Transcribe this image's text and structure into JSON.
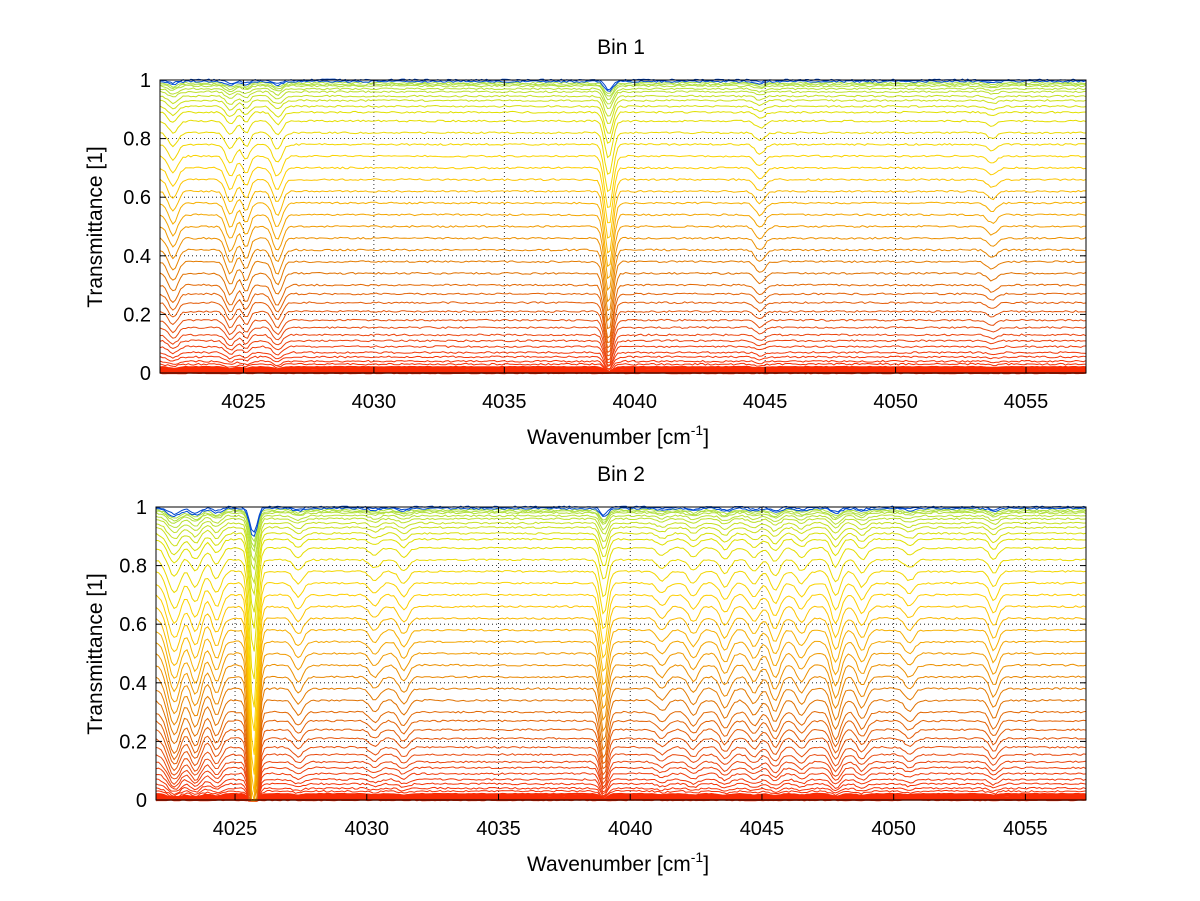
{
  "chart_data": [
    {
      "type": "line",
      "title": "Bin 1",
      "xlabel": "Wavenumber [cm",
      "xlabel_sup": "-1",
      "xlabel_tail": "]",
      "ylabel": "Transmittance [1]",
      "xlim": [
        4021.8,
        4057.3
      ],
      "ylim": [
        0,
        1.0
      ],
      "xticks": [
        4025,
        4030,
        4035,
        4040,
        4045,
        4050,
        4055
      ],
      "xtick_labels": [
        "4025",
        "4030",
        "4035",
        "4040",
        "4045",
        "4050",
        "4055"
      ],
      "yticks": [
        0,
        0.2,
        0.4,
        0.6,
        0.8,
        1
      ],
      "ytick_labels": [
        "0",
        "0.2",
        "0.4",
        "0.6",
        "0.8",
        "1"
      ],
      "grid": true,
      "series_levels": [
        0.0,
        0.003,
        0.006,
        0.01,
        0.015,
        0.02,
        0.03,
        0.04,
        0.055,
        0.07,
        0.09,
        0.11,
        0.13,
        0.155,
        0.18,
        0.21,
        0.24,
        0.27,
        0.3,
        0.34,
        0.38,
        0.42,
        0.46,
        0.5,
        0.54,
        0.58,
        0.62,
        0.66,
        0.7,
        0.74,
        0.78,
        0.82,
        0.86,
        0.89,
        0.91,
        0.93,
        0.945,
        0.96,
        0.97,
        0.98,
        0.985,
        0.99,
        0.995,
        1.0
      ],
      "absorption_lines": [
        {
          "x": 4022.3,
          "depth": 0.05,
          "width": 0.25
        },
        {
          "x": 4024.5,
          "depth": 0.06,
          "width": 0.25
        },
        {
          "x": 4025.1,
          "depth": 0.05,
          "width": 0.2
        },
        {
          "x": 4026.3,
          "depth": 0.06,
          "width": 0.25
        },
        {
          "x": 4039.0,
          "depth": 0.16,
          "width": 0.22
        },
        {
          "x": 4044.8,
          "depth": 0.03,
          "width": 0.25
        },
        {
          "x": 4053.7,
          "depth": 0.02,
          "width": 0.25
        }
      ],
      "colormap": [
        "#00008f",
        "#0080ff",
        "#20c0d0",
        "#80e080",
        "#e0e000",
        "#ffd000",
        "#f2a000",
        "#e07000",
        "#e84a10",
        "#ff2000"
      ]
    },
    {
      "type": "line",
      "title": "Bin 2",
      "xlabel": "Wavenumber [cm",
      "xlabel_sup": "-1",
      "xlabel_tail": "]",
      "ylabel": "Transmittance [1]",
      "xlim": [
        4022.0,
        4057.3
      ],
      "ylim": [
        0,
        1.0
      ],
      "xticks": [
        4025,
        4030,
        4035,
        4040,
        4045,
        4050,
        4055
      ],
      "xtick_labels": [
        "4025",
        "4030",
        "4035",
        "4040",
        "4045",
        "4050",
        "4055"
      ],
      "yticks": [
        0,
        0.2,
        0.4,
        0.6,
        0.8,
        1
      ],
      "ytick_labels": [
        "0",
        "0.2",
        "0.4",
        "0.6",
        "0.8",
        "1"
      ],
      "grid": true,
      "series_levels": [
        0.0,
        0.003,
        0.006,
        0.01,
        0.015,
        0.02,
        0.03,
        0.04,
        0.055,
        0.07,
        0.09,
        0.11,
        0.13,
        0.155,
        0.18,
        0.21,
        0.24,
        0.27,
        0.3,
        0.34,
        0.38,
        0.42,
        0.46,
        0.5,
        0.54,
        0.58,
        0.62,
        0.66,
        0.7,
        0.74,
        0.78,
        0.82,
        0.86,
        0.89,
        0.91,
        0.93,
        0.945,
        0.96,
        0.97,
        0.98,
        0.985,
        0.99,
        0.995,
        1.0
      ],
      "absorption_lines": [
        {
          "x": 4022.7,
          "depth": 0.12,
          "width": 0.35
        },
        {
          "x": 4023.5,
          "depth": 0.1,
          "width": 0.3
        },
        {
          "x": 4024.3,
          "depth": 0.07,
          "width": 0.25
        },
        {
          "x": 4025.7,
          "depth": 0.45,
          "width": 0.2
        },
        {
          "x": 4027.4,
          "depth": 0.04,
          "width": 0.25
        },
        {
          "x": 4030.3,
          "depth": 0.03,
          "width": 0.25
        },
        {
          "x": 4031.4,
          "depth": 0.04,
          "width": 0.25
        },
        {
          "x": 4039.0,
          "depth": 0.14,
          "width": 0.2
        },
        {
          "x": 4041.2,
          "depth": 0.03,
          "width": 0.25
        },
        {
          "x": 4042.4,
          "depth": 0.04,
          "width": 0.25
        },
        {
          "x": 4043.6,
          "depth": 0.05,
          "width": 0.25
        },
        {
          "x": 4044.7,
          "depth": 0.04,
          "width": 0.25
        },
        {
          "x": 4045.5,
          "depth": 0.06,
          "width": 0.25
        },
        {
          "x": 4046.5,
          "depth": 0.04,
          "width": 0.25
        },
        {
          "x": 4047.8,
          "depth": 0.08,
          "width": 0.25
        },
        {
          "x": 4048.8,
          "depth": 0.05,
          "width": 0.25
        },
        {
          "x": 4050.6,
          "depth": 0.03,
          "width": 0.25
        },
        {
          "x": 4053.8,
          "depth": 0.05,
          "width": 0.22
        }
      ],
      "colormap": [
        "#00008f",
        "#0080ff",
        "#20c0d0",
        "#80e080",
        "#e0e000",
        "#ffd000",
        "#f2a000",
        "#e07000",
        "#e84a10",
        "#ff2000"
      ]
    }
  ]
}
